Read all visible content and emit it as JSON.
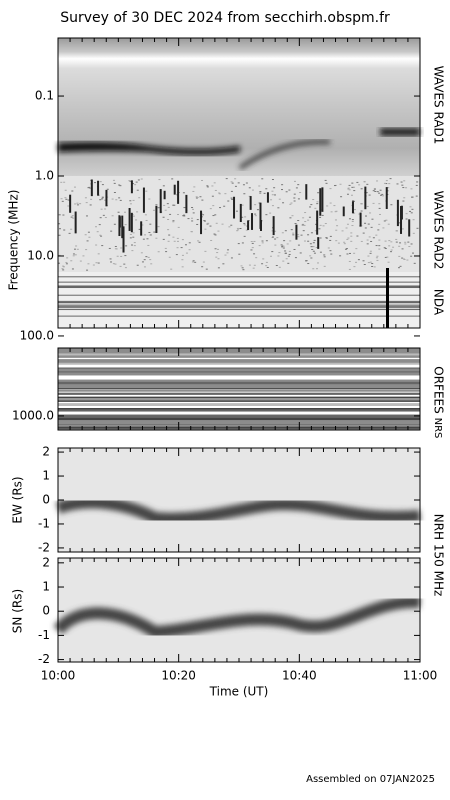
{
  "title": "Survey of 30 DEC 2024 from secchirh.obspm.fr",
  "spectrum": {
    "y_label": "Frequency (MHz)",
    "log_scale": true,
    "ylim": [
      0.0188,
      1500
    ],
    "yticks": [
      0.1,
      {
        "value": 1,
        "label": "1.0"
      },
      {
        "value": 10,
        "label": "10.0"
      },
      {
        "value": 100,
        "label": "100.0"
      },
      {
        "value": 1000,
        "label": "1000.0"
      }
    ],
    "instruments": [
      "WAVES RAD1",
      "WAVES RAD2",
      "NDA",
      "ORFEES",
      "NRS"
    ]
  },
  "ew": {
    "y_label": "EW (Rs)",
    "ylim": [
      -2.17,
      2.17
    ],
    "yticks": [
      -2,
      -1,
      0,
      1,
      2
    ]
  },
  "sn": {
    "y_label": "SN (Rs)",
    "ylim": [
      -2.1,
      2.2
    ],
    "yticks": [
      -2,
      -1,
      0,
      1,
      2
    ]
  },
  "nrh_label": "NRH 150 MHz",
  "time_axis": {
    "label": "Time (UT)",
    "ticks": [
      "10:00",
      "10:20",
      "10:40",
      "11:00"
    ]
  },
  "footer": "Assembled on 07JAN2025"
}
